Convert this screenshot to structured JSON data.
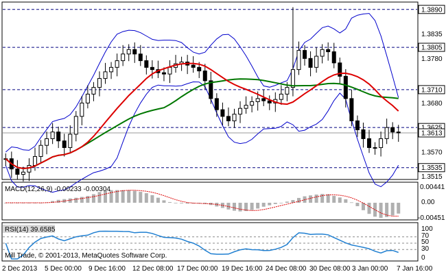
{
  "colors": {
    "candle": "#000000",
    "bollinger": "#0000cc",
    "ma_fast": "#dd0000",
    "ma_slow": "#007700",
    "level": "#000080",
    "macd_hist": "#b0b0b0",
    "macd_signal": "#dd0000",
    "rsi": "#1f7fd1",
    "price_box": "#ffffff"
  },
  "main": {
    "price_labels": [
      "1.3890",
      "1.3835",
      "1.3805",
      "1.3780",
      "1.3710",
      "1.3680",
      "1.3625",
      "1.3613",
      "1.3570",
      "1.3535",
      "1.3515"
    ],
    "price_tags": [
      {
        "label": "1.3890",
        "price": 1.389,
        "boxed": true
      },
      {
        "label": "1.3805",
        "price": 1.3805,
        "boxed": true
      },
      {
        "label": "1.3710",
        "price": 1.371,
        "boxed": true
      },
      {
        "label": "1.3625",
        "price": 1.3625,
        "boxed": true
      },
      {
        "label": "1.3613",
        "price": 1.3613,
        "boxed": true
      },
      {
        "label": "1.3535",
        "price": 1.3535,
        "boxed": true
      },
      {
        "label": "1.3835",
        "price": 1.3835,
        "boxed": false
      },
      {
        "label": "1.3780",
        "price": 1.378,
        "boxed": false
      },
      {
        "label": "1.3680",
        "price": 1.368,
        "boxed": false
      },
      {
        "label": "1.3570",
        "price": 1.357,
        "boxed": false
      },
      {
        "label": "1.3515",
        "price": 1.3515,
        "boxed": false
      }
    ],
    "levels": [
      1.389,
      1.3805,
      1.371,
      1.3625,
      1.3535
    ],
    "current_price": 1.3613
  },
  "macd": {
    "title": "MACD(12,26,9) -0.00233 -0.00304",
    "scale": [
      "0.00441",
      "0.00",
      "-0.00451"
    ]
  },
  "rsi": {
    "title": "RSI(14) 39.6585",
    "scale": [
      "100",
      "70",
      "50",
      "30",
      "0"
    ]
  },
  "copyright": "Mill Trade, © 2001-2013, MetaQuotes Software Corp.",
  "dates": [
    "2 Dec 2013",
    "5 Dec 00:00",
    "9 Dec 16:00",
    "12 Dec 08:00",
    "17 Dec 00:00",
    "19 Dec 16:00",
    "24 Dec 08:00",
    "30 Dec 08:00",
    "3 Jan 00:00",
    "7 Jan 16:00"
  ],
  "chart_data": {
    "type": "candlestick",
    "series": [
      {
        "name": "price",
        "values": [
          1.3555,
          1.3532,
          1.352,
          1.3525,
          1.354,
          1.356,
          1.3585,
          1.36,
          1.3615,
          1.3595,
          1.358,
          1.361,
          1.365,
          1.368,
          1.37,
          1.3715,
          1.3735,
          1.375,
          1.376,
          1.3775,
          1.379,
          1.38,
          1.379,
          1.3775,
          1.376,
          1.3755,
          1.3748,
          1.3745,
          1.376,
          1.3768,
          1.3772,
          1.3765,
          1.376,
          1.3752,
          1.373,
          1.369,
          1.3665,
          1.365,
          1.364,
          1.3655,
          1.3668,
          1.3675,
          1.3683,
          1.369,
          1.3685,
          1.368,
          1.3688,
          1.37,
          1.3715,
          1.3755,
          1.3798,
          1.378,
          1.376,
          1.3785,
          1.38,
          1.3795,
          1.377,
          1.374,
          1.369,
          1.364,
          1.362,
          1.36,
          1.358,
          1.358,
          1.36,
          1.3625,
          1.3615,
          1.3613
        ]
      }
    ],
    "levels": [
      1.389,
      1.3805,
      1.371,
      1.3625,
      1.3535
    ],
    "y_range": [
      1.351,
      1.3905
    ],
    "indicators": [
      "Bollinger Bands",
      "MA fast (red)",
      "MA slow (green)",
      "MACD(12,26,9)",
      "RSI(14)"
    ]
  }
}
